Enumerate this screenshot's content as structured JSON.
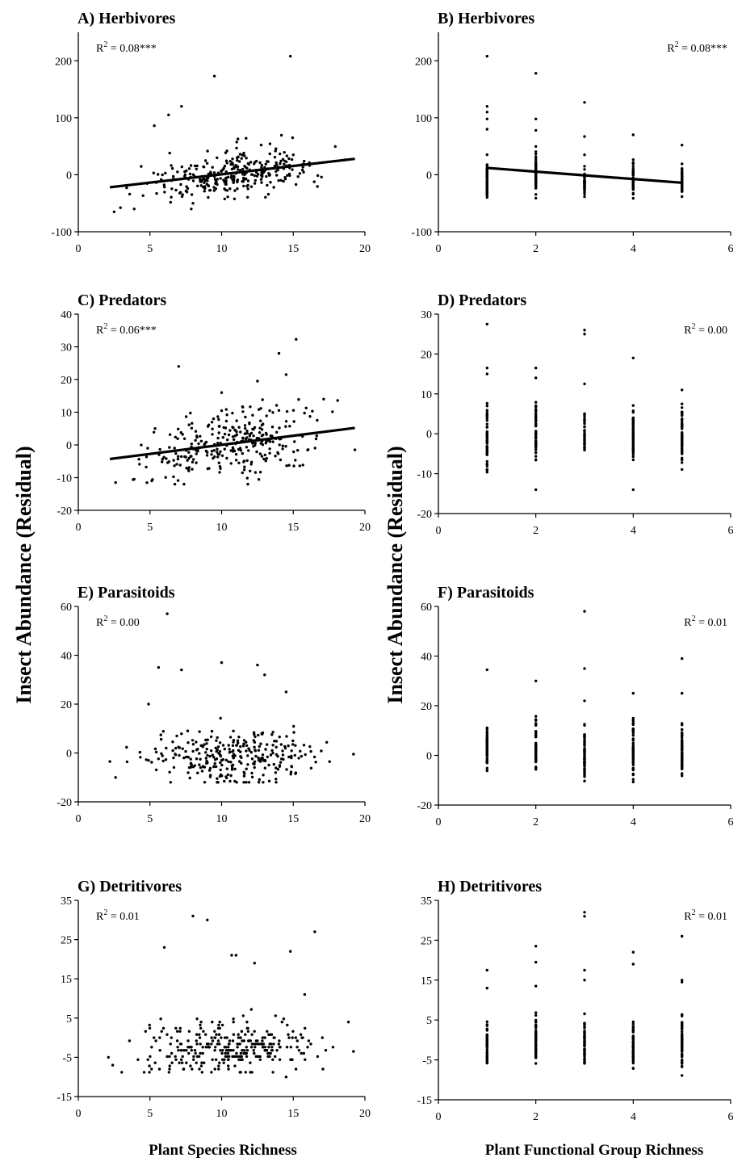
{
  "figure": {
    "ylabel": "Insect Abundance (Residual)",
    "xlabel_left": "Plant Species Richness",
    "xlabel_right": "Plant Functional Group Richness"
  },
  "chart_data": [
    {
      "id": "A",
      "type": "scatter",
      "title": "A) Herbivores",
      "annotation": {
        "text": "R",
        "sup": "2",
        "rest": " = 0.08***"
      },
      "annotation_position": "top-left",
      "xlim": [
        0,
        20
      ],
      "xticks": [
        0,
        5,
        10,
        15,
        20
      ],
      "ylim": [
        -100,
        250
      ],
      "yticks": [
        -100,
        0,
        100,
        200
      ],
      "trend": {
        "x": [
          2.2,
          19.3
        ],
        "y": [
          -22,
          28
        ]
      },
      "cloud": {
        "kind": "species",
        "n": 300,
        "seed": 11,
        "xmin": 2.2,
        "xmax": 19.3,
        "slope": 2.9,
        "intercept": -28,
        "sd": 20,
        "ymin": -60,
        "ymax": 90
      },
      "outliers": [
        [
          14.8,
          208
        ],
        [
          9.5,
          173
        ],
        [
          7.2,
          120
        ],
        [
          6.3,
          105
        ],
        [
          5.3,
          86
        ],
        [
          2.5,
          -65
        ],
        [
          3.9,
          -60
        ],
        [
          8.0,
          -50
        ]
      ]
    },
    {
      "id": "B",
      "type": "scatter",
      "title": "B) Herbivores",
      "annotation": {
        "text": "R",
        "sup": "2",
        "rest": " = 0.08***"
      },
      "annotation_position": "top-right",
      "xlim": [
        0,
        6
      ],
      "xticks": [
        0,
        2,
        4,
        6
      ],
      "ylim": [
        -100,
        250
      ],
      "yticks": [
        -100,
        0,
        100,
        200
      ],
      "trend": {
        "x": [
          1,
          5
        ],
        "y": [
          12,
          -14
        ]
      },
      "cloud": {
        "kind": "group",
        "seed": 21,
        "columns": [
          {
            "x": 1,
            "n": 70,
            "ymin": -50,
            "ymax": 42
          },
          {
            "x": 2,
            "n": 65,
            "ymin": -48,
            "ymax": 52
          },
          {
            "x": 3,
            "n": 45,
            "ymin": -42,
            "ymax": 20
          },
          {
            "x": 4,
            "n": 50,
            "ymin": -44,
            "ymax": 32
          },
          {
            "x": 5,
            "n": 60,
            "ymin": -48,
            "ymax": 28
          }
        ]
      },
      "outliers": [
        [
          1,
          208
        ],
        [
          1,
          120
        ],
        [
          1,
          110
        ],
        [
          1,
          98
        ],
        [
          1,
          80
        ],
        [
          2,
          178
        ],
        [
          2,
          98
        ],
        [
          2,
          78
        ],
        [
          3,
          127
        ],
        [
          3,
          67
        ],
        [
          3,
          35
        ],
        [
          4,
          70
        ],
        [
          5,
          52
        ]
      ]
    },
    {
      "id": "C",
      "type": "scatter",
      "title": "C) Predators",
      "annotation": {
        "text": "R",
        "sup": "2",
        "rest": " = 0.06***"
      },
      "annotation_position": "top-left",
      "xlim": [
        0,
        20
      ],
      "xticks": [
        0,
        5,
        10,
        15,
        20
      ],
      "ylim": [
        -20,
        40
      ],
      "yticks": [
        -20,
        -10,
        0,
        10,
        20,
        30,
        40
      ],
      "trend": {
        "x": [
          2.2,
          19.3
        ],
        "y": [
          -4.3,
          5.2
        ]
      },
      "cloud": {
        "kind": "species",
        "n": 300,
        "seed": 31,
        "xmin": 2.2,
        "xmax": 19.3,
        "slope": 0.55,
        "intercept": -5.5,
        "sd": 5,
        "ymin": -12,
        "ymax": 14
      },
      "outliers": [
        [
          15.2,
          32.3
        ],
        [
          14,
          28
        ],
        [
          14.5,
          21.5
        ],
        [
          7,
          24
        ],
        [
          12.5,
          19.5
        ],
        [
          2.6,
          -11.5
        ],
        [
          3.9,
          -10.5
        ],
        [
          19.3,
          -1.5
        ],
        [
          10,
          16
        ]
      ]
    },
    {
      "id": "D",
      "type": "scatter",
      "title": "D) Predators",
      "annotation": {
        "text": "R",
        "sup": "2",
        "rest": " = 0.00"
      },
      "annotation_position": "top-right",
      "xlim": [
        0,
        6
      ],
      "xticks": [
        0,
        2,
        4,
        6
      ],
      "ylim": [
        -20,
        30
      ],
      "yticks": [
        -20,
        -10,
        0,
        10,
        20,
        30
      ],
      "cloud": {
        "kind": "group",
        "seed": 41,
        "columns": [
          {
            "x": 1,
            "n": 60,
            "ymin": -12,
            "ymax": 10
          },
          {
            "x": 2,
            "n": 60,
            "ymin": -9,
            "ymax": 12
          },
          {
            "x": 3,
            "n": 35,
            "ymin": -7,
            "ymax": 8
          },
          {
            "x": 4,
            "n": 60,
            "ymin": -9,
            "ymax": 9
          },
          {
            "x": 5,
            "n": 70,
            "ymin": -10,
            "ymax": 10
          }
        ]
      },
      "outliers": [
        [
          1,
          27.5
        ],
        [
          1,
          16.5
        ],
        [
          1,
          15
        ],
        [
          2,
          16.5
        ],
        [
          2,
          14
        ],
        [
          2,
          -14
        ],
        [
          3,
          26
        ],
        [
          3,
          25
        ],
        [
          3,
          12.5
        ],
        [
          4,
          19
        ],
        [
          4,
          -14
        ],
        [
          5,
          11
        ]
      ]
    },
    {
      "id": "E",
      "type": "scatter",
      "title": "E) Parasitoids",
      "annotation": {
        "text": "R",
        "sup": "2",
        "rest": " = 0.00"
      },
      "annotation_position": "top-left",
      "xlim": [
        0,
        20
      ],
      "xticks": [
        0,
        5,
        10,
        15,
        20
      ],
      "ylim": [
        -20,
        60
      ],
      "yticks": [
        -20,
        0,
        20,
        40,
        60
      ],
      "cloud": {
        "kind": "species",
        "n": 290,
        "seed": 51,
        "xmin": 2.2,
        "xmax": 19.3,
        "slope": 0,
        "intercept": -2,
        "sd": 5.5,
        "ymin": -12,
        "ymax": 18
      },
      "outliers": [
        [
          6.2,
          57
        ],
        [
          10,
          37
        ],
        [
          12.5,
          36
        ],
        [
          13,
          32
        ],
        [
          5.6,
          35
        ],
        [
          7.2,
          34
        ],
        [
          14.5,
          25
        ],
        [
          2.2,
          -3.5
        ],
        [
          2.6,
          -10
        ],
        [
          19.2,
          -0.5
        ],
        [
          4.9,
          20
        ]
      ]
    },
    {
      "id": "F",
      "type": "scatter",
      "title": "F) Parasitoids",
      "annotation": {
        "text": "R",
        "sup": "2",
        "rest": " = 0.01"
      },
      "annotation_position": "top-right",
      "xlim": [
        0,
        6
      ],
      "xticks": [
        0,
        2,
        4,
        6
      ],
      "ylim": [
        -20,
        60
      ],
      "yticks": [
        -20,
        0,
        20,
        40,
        60
      ],
      "cloud": {
        "kind": "group",
        "seed": 61,
        "columns": [
          {
            "x": 1,
            "n": 60,
            "ymin": -12,
            "ymax": 16
          },
          {
            "x": 2,
            "n": 60,
            "ymin": -11,
            "ymax": 20
          },
          {
            "x": 3,
            "n": 60,
            "ymin": -13,
            "ymax": 16
          },
          {
            "x": 4,
            "n": 60,
            "ymin": -14,
            "ymax": 22
          },
          {
            "x": 5,
            "n": 75,
            "ymin": -11,
            "ymax": 17
          }
        ]
      },
      "outliers": [
        [
          1,
          34.5
        ],
        [
          2,
          30
        ],
        [
          3,
          58
        ],
        [
          3,
          35
        ],
        [
          3,
          22
        ],
        [
          4,
          25
        ],
        [
          5,
          39
        ],
        [
          5,
          25
        ]
      ]
    },
    {
      "id": "G",
      "type": "scatter",
      "title": "G) Detritivores",
      "annotation": {
        "text": "R",
        "sup": "2",
        "rest": " = 0.01"
      },
      "annotation_position": "top-left",
      "xlim": [
        0,
        20
      ],
      "xticks": [
        0,
        5,
        10,
        15,
        20
      ],
      "ylim": [
        -15,
        35
      ],
      "yticks": [
        -15,
        -5,
        5,
        15,
        25,
        35
      ],
      "cloud": {
        "kind": "species",
        "n": 300,
        "seed": 71,
        "xmin": 2.2,
        "xmax": 19.3,
        "slope": 0.05,
        "intercept": -3,
        "sd": 3.5,
        "ymin": -9,
        "ymax": 9,
        "quantize": 0.8
      },
      "outliers": [
        [
          8,
          31
        ],
        [
          9,
          30
        ],
        [
          16.5,
          27
        ],
        [
          6,
          23
        ],
        [
          14.8,
          22
        ],
        [
          11,
          21
        ],
        [
          10.7,
          21
        ],
        [
          12.3,
          19
        ],
        [
          15.8,
          11
        ],
        [
          2.1,
          -5
        ],
        [
          2.4,
          -7
        ],
        [
          19.2,
          -3.5
        ],
        [
          14.5,
          -10
        ]
      ]
    },
    {
      "id": "H",
      "type": "scatter",
      "title": "H) Detritivores",
      "annotation": {
        "text": "R",
        "sup": "2",
        "rest": " = 0.01"
      },
      "annotation_position": "top-right",
      "xlim": [
        0,
        6
      ],
      "xticks": [
        0,
        2,
        4,
        6
      ],
      "ylim": [
        -15,
        35
      ],
      "yticks": [
        -15,
        -5,
        5,
        15,
        25,
        35
      ],
      "cloud": {
        "kind": "group",
        "seed": 81,
        "columns": [
          {
            "x": 1,
            "n": 50,
            "ymin": -9,
            "ymax": 7
          },
          {
            "x": 2,
            "n": 55,
            "ymin": -8,
            "ymax": 9
          },
          {
            "x": 3,
            "n": 55,
            "ymin": -9,
            "ymax": 9
          },
          {
            "x": 4,
            "n": 50,
            "ymin": -9,
            "ymax": 8
          },
          {
            "x": 5,
            "n": 65,
            "ymin": -11,
            "ymax": 10
          }
        ]
      },
      "outliers": [
        [
          1,
          17.5
        ],
        [
          1,
          13
        ],
        [
          2,
          23.5
        ],
        [
          2,
          19.5
        ],
        [
          2,
          13.5
        ],
        [
          3,
          32
        ],
        [
          3,
          31
        ],
        [
          3,
          17.5
        ],
        [
          3,
          15
        ],
        [
          4,
          22
        ],
        [
          4,
          19
        ],
        [
          5,
          26
        ],
        [
          5,
          15
        ],
        [
          5,
          14.5
        ]
      ]
    }
  ]
}
